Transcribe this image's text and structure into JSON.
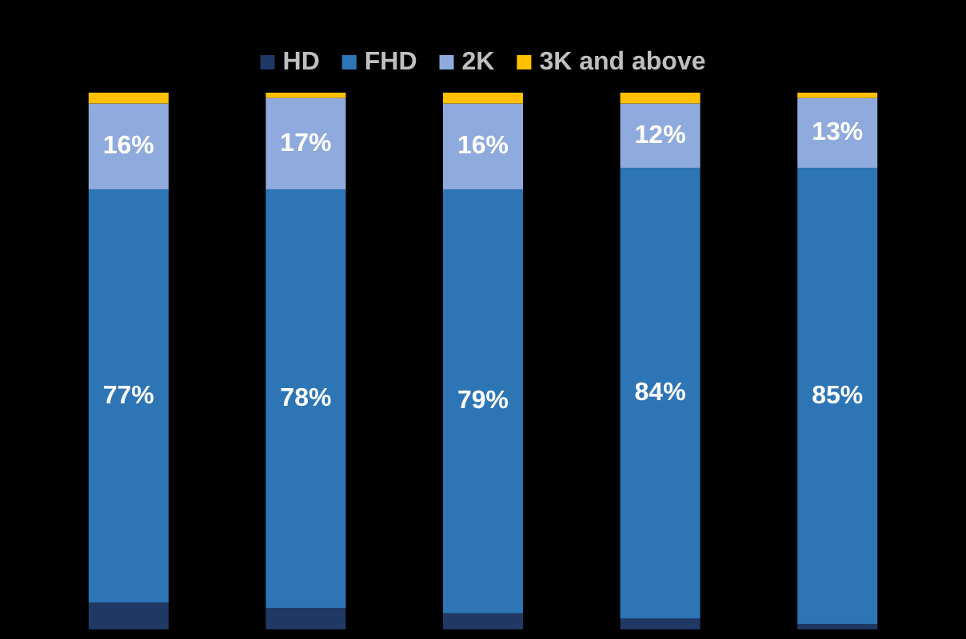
{
  "chart_data": {
    "type": "bar",
    "stacked": true,
    "categories": [
      null,
      null,
      null,
      null,
      null
    ],
    "series": [
      {
        "name": "HD",
        "color": "#1f3864",
        "values": [
          5,
          4,
          3,
          2,
          1
        ]
      },
      {
        "name": "FHD",
        "color": "#2e75b6",
        "values": [
          77,
          78,
          79,
          84,
          85
        ],
        "value_labels": [
          "77%",
          "78%",
          "79%",
          "84%",
          "85%"
        ]
      },
      {
        "name": "2K",
        "color": "#8faadc",
        "values": [
          16,
          17,
          16,
          12,
          13
        ],
        "value_labels": [
          "16%",
          "17%",
          "16%",
          "12%",
          "13%"
        ]
      },
      {
        "name": "3K and above",
        "color": "#ffc000",
        "values": [
          2,
          1,
          2,
          2,
          1
        ]
      }
    ],
    "ylim": [
      0,
      100
    ],
    "tick_labels": false,
    "legend": "top"
  }
}
